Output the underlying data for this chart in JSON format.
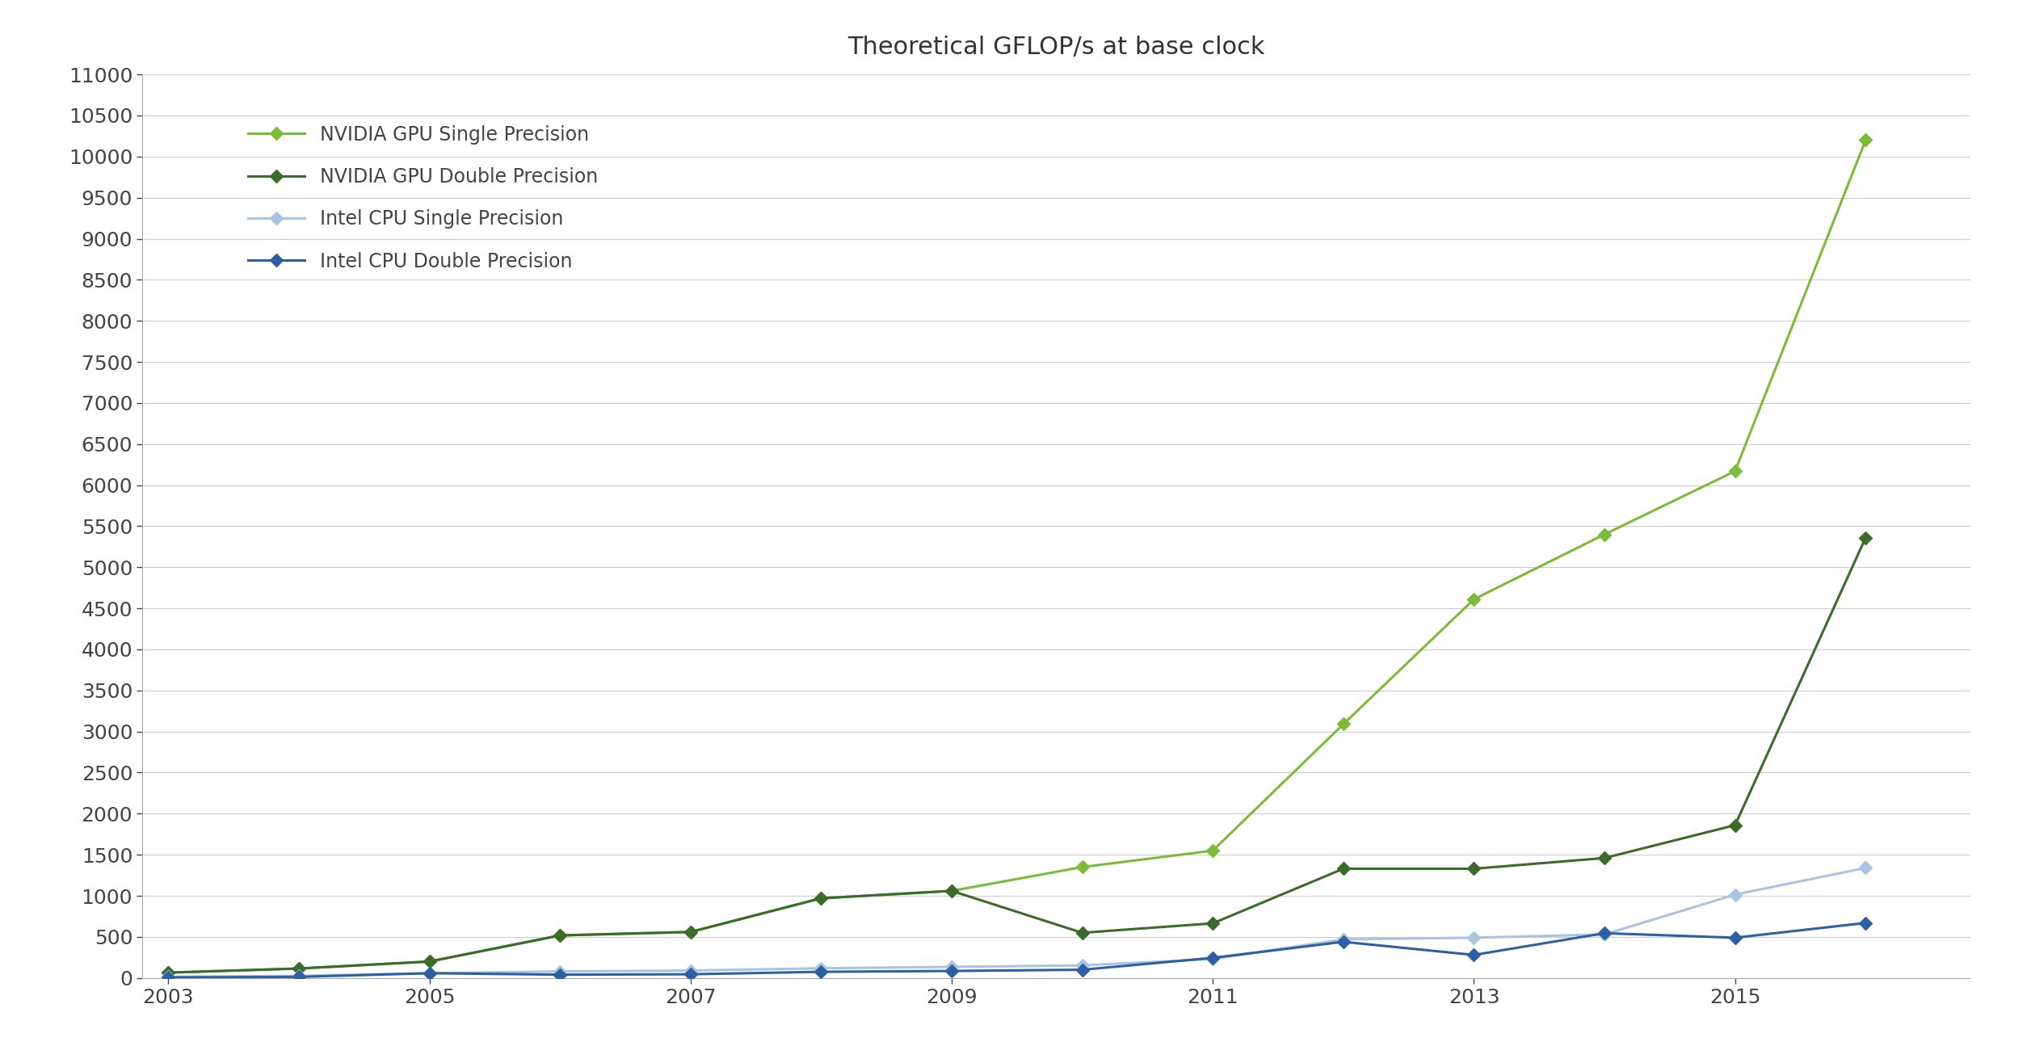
{
  "title": "Theoretical GFLOP/s at base clock",
  "series": [
    {
      "label": "NVIDIA GPU Single Precision",
      "color": "#7CBB3A",
      "linewidth": 2.2,
      "marker": "D",
      "markersize": 8,
      "markerfacecolor": "#7CBB3A",
      "x": [
        2003,
        2004,
        2005,
        2006,
        2007,
        2008,
        2009,
        2010,
        2011,
        2012,
        2013,
        2014,
        2015,
        2016
      ],
      "y": [
        65,
        115,
        200,
        518,
        560,
        970,
        1060,
        1350,
        1550,
        3090,
        4610,
        5400,
        6170,
        10200
      ]
    },
    {
      "label": "NVIDIA GPU Double Precision",
      "color": "#3A6B2A",
      "linewidth": 2.2,
      "marker": "D",
      "markersize": 8,
      "markerfacecolor": "#3A6B2A",
      "x": [
        2003,
        2004,
        2005,
        2006,
        2007,
        2008,
        2009,
        2010,
        2011,
        2012,
        2013,
        2014,
        2015,
        2016
      ],
      "y": [
        65,
        115,
        200,
        518,
        560,
        970,
        1060,
        550,
        665,
        1330,
        1330,
        1460,
        1860,
        5360
      ]
    },
    {
      "label": "Intel CPU Single Precision",
      "color": "#A8C4E0",
      "linewidth": 2.2,
      "marker": "D",
      "markersize": 8,
      "markerfacecolor": "#A8C4E0",
      "x": [
        2003,
        2004,
        2005,
        2006,
        2007,
        2008,
        2009,
        2010,
        2011,
        2012,
        2013,
        2014,
        2015,
        2016
      ],
      "y": [
        14,
        26,
        58,
        80,
        90,
        118,
        135,
        153,
        230,
        470,
        490,
        530,
        1015,
        1340
      ]
    },
    {
      "label": "Intel CPU Double Precision",
      "color": "#2E5FA3",
      "linewidth": 2.2,
      "marker": "D",
      "markersize": 8,
      "markerfacecolor": "#2E5FA3",
      "x": [
        2003,
        2004,
        2005,
        2006,
        2007,
        2008,
        2009,
        2010,
        2011,
        2012,
        2013,
        2014,
        2015,
        2016
      ],
      "y": [
        7,
        13,
        58,
        40,
        45,
        75,
        85,
        100,
        245,
        440,
        280,
        545,
        490,
        670
      ]
    }
  ],
  "xlim": [
    2002.8,
    2016.8
  ],
  "ylim": [
    0,
    11000
  ],
  "yticks": [
    0,
    500,
    1000,
    1500,
    2000,
    2500,
    3000,
    3500,
    4000,
    4500,
    5000,
    5500,
    6000,
    6500,
    7000,
    7500,
    8000,
    8500,
    9000,
    9500,
    10000,
    10500,
    11000
  ],
  "xticks": [
    2003,
    2005,
    2007,
    2009,
    2011,
    2013,
    2015
  ],
  "background_color": "#FFFFFF",
  "grid_color": "#CCCCCC",
  "grid_alpha": 1.0,
  "title_fontsize": 22,
  "tick_fontsize": 18,
  "legend_fontsize": 17
}
